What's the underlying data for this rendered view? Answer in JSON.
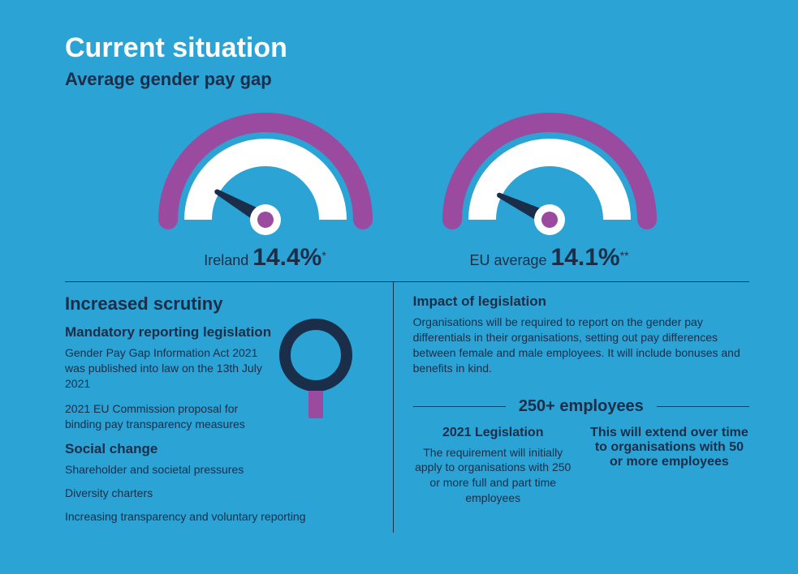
{
  "colors": {
    "background": "#2ba3d4",
    "navy": "#1a2e4a",
    "white": "#ffffff",
    "purple": "#9a4ba0",
    "purple_light": "#b565bb"
  },
  "title": "Current situation",
  "subtitle": "Average gender pay gap",
  "gauges": [
    {
      "label": "Ireland",
      "value": "14.4%",
      "asterisk": "*",
      "needle_angle_deg": 210,
      "arc_color": "#9a4ba0",
      "ring_color": "#ffffff",
      "needle_color": "#1a2e4a",
      "hub_fill": "#ffffff",
      "hub_inner": "#9a4ba0"
    },
    {
      "label": "EU average",
      "value": "14.1%",
      "asterisk": "**",
      "needle_angle_deg": 206,
      "arc_color": "#9a4ba0",
      "ring_color": "#ffffff",
      "needle_color": "#1a2e4a",
      "hub_fill": "#ffffff",
      "hub_inner": "#9a4ba0"
    }
  ],
  "left": {
    "heading": "Increased scrutiny",
    "section1": {
      "heading": "Mandatory reporting legislation",
      "para1": "Gender Pay Gap Information Act 2021 was published into law on the 13th July 2021",
      "para2": "2021 EU Commission proposal for binding pay transparency measures"
    },
    "section2": {
      "heading": "Social change",
      "items": [
        "Shareholder and societal pressures",
        "Diversity charters",
        "Increasing transparency and voluntary reporting"
      ]
    },
    "magnifier": {
      "ring_color": "#1a2e4a",
      "handle_color": "#9a4ba0"
    }
  },
  "right": {
    "heading": "Impact of legislation",
    "para": "Organisations will be required to report on the gender pay differentials in their organisations, setting out pay differences between female and male employees. It will include bonuses and benefits in kind.",
    "employees": {
      "title": "250+ employees",
      "col1": {
        "heading": "2021 Legislation",
        "text": "The requirement will initially apply to organisations with 250 or more full and part time employees"
      },
      "col2": {
        "heading_and_text": "This will extend over time to organisations with 50 or more employees"
      }
    }
  }
}
